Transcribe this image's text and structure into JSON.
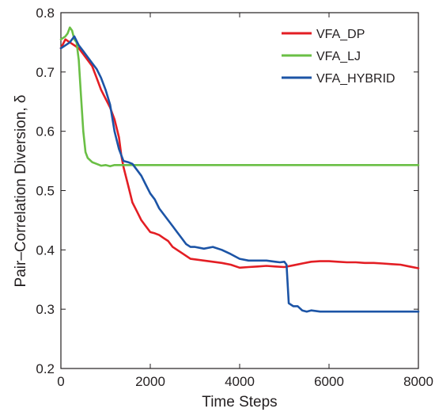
{
  "chart_data": {
    "type": "line",
    "title": "",
    "xlabel": "Time Steps",
    "ylabel": "Pair–Correlation Diversion, δ",
    "xlim": [
      0,
      8000
    ],
    "ylim": [
      0.2,
      0.8
    ],
    "x_ticks": [
      0,
      2000,
      4000,
      6000,
      8000
    ],
    "x_tick_labels": [
      "0",
      "2000",
      "4000",
      "6000",
      "8000"
    ],
    "y_ticks": [
      0.2,
      0.3,
      0.4,
      0.5,
      0.6,
      0.7,
      0.8
    ],
    "y_tick_labels": [
      "0.2",
      "0.3",
      "0.4",
      "0.5",
      "0.6",
      "0.7",
      "0.8"
    ],
    "grid": false,
    "legend_position": "top-right",
    "series": [
      {
        "name": "VFA_DP",
        "color": "#e31e24",
        "x": [
          0,
          100,
          200,
          300,
          400,
          500,
          600,
          700,
          800,
          900,
          1000,
          1100,
          1200,
          1300,
          1350,
          1400,
          1500,
          1600,
          1700,
          1800,
          1900,
          2000,
          2100,
          2200,
          2300,
          2400,
          2500,
          2600,
          2700,
          2800,
          2900,
          3000,
          3200,
          3400,
          3600,
          3800,
          4000,
          4200,
          4400,
          4600,
          4800,
          5000,
          5200,
          5400,
          5600,
          5800,
          6000,
          6200,
          6400,
          6600,
          6800,
          7000,
          7200,
          7400,
          7600,
          7800,
          8000
        ],
        "y": [
          0.74,
          0.755,
          0.75,
          0.745,
          0.74,
          0.73,
          0.72,
          0.71,
          0.69,
          0.67,
          0.655,
          0.64,
          0.62,
          0.59,
          0.56,
          0.54,
          0.51,
          0.48,
          0.465,
          0.45,
          0.44,
          0.43,
          0.428,
          0.425,
          0.42,
          0.415,
          0.405,
          0.4,
          0.395,
          0.39,
          0.385,
          0.384,
          0.382,
          0.38,
          0.378,
          0.375,
          0.37,
          0.371,
          0.372,
          0.373,
          0.372,
          0.371,
          0.374,
          0.377,
          0.38,
          0.381,
          0.381,
          0.38,
          0.379,
          0.379,
          0.378,
          0.378,
          0.377,
          0.376,
          0.375,
          0.372,
          0.369
        ]
      },
      {
        "name": "VFA_LJ",
        "color": "#6abf45",
        "x": [
          0,
          100,
          150,
          200,
          250,
          300,
          350,
          400,
          450,
          500,
          550,
          600,
          700,
          800,
          900,
          1000,
          1100,
          1200,
          1400,
          1600,
          1800,
          2000,
          2500,
          3000,
          4000,
          5000,
          6000,
          7000,
          8000
        ],
        "y": [
          0.755,
          0.76,
          0.765,
          0.775,
          0.77,
          0.755,
          0.75,
          0.72,
          0.66,
          0.6,
          0.565,
          0.555,
          0.548,
          0.545,
          0.542,
          0.543,
          0.541,
          0.543,
          0.543,
          0.543,
          0.543,
          0.543,
          0.543,
          0.543,
          0.543,
          0.543,
          0.543,
          0.543,
          0.543
        ]
      },
      {
        "name": "VFA_HYBRID",
        "color": "#1c54a6",
        "x": [
          0,
          100,
          200,
          300,
          400,
          500,
          600,
          700,
          800,
          900,
          1000,
          1100,
          1200,
          1300,
          1400,
          1500,
          1600,
          1700,
          1800,
          1900,
          2000,
          2100,
          2200,
          2300,
          2400,
          2500,
          2600,
          2700,
          2800,
          2900,
          3000,
          3200,
          3400,
          3600,
          3800,
          4000,
          4200,
          4400,
          4600,
          4800,
          4900,
          5000,
          5050,
          5100,
          5200,
          5300,
          5400,
          5500,
          5600,
          5700,
          5800,
          6000,
          6500,
          7000,
          7500,
          8000
        ],
        "y": [
          0.74,
          0.745,
          0.75,
          0.76,
          0.745,
          0.735,
          0.725,
          0.715,
          0.705,
          0.69,
          0.67,
          0.645,
          0.6,
          0.57,
          0.55,
          0.548,
          0.545,
          0.535,
          0.525,
          0.51,
          0.495,
          0.485,
          0.47,
          0.46,
          0.45,
          0.44,
          0.43,
          0.42,
          0.41,
          0.405,
          0.405,
          0.402,
          0.405,
          0.4,
          0.393,
          0.385,
          0.382,
          0.382,
          0.382,
          0.38,
          0.379,
          0.38,
          0.375,
          0.31,
          0.305,
          0.305,
          0.298,
          0.296,
          0.298,
          0.297,
          0.296,
          0.296,
          0.296,
          0.296,
          0.296,
          0.296
        ]
      }
    ]
  }
}
